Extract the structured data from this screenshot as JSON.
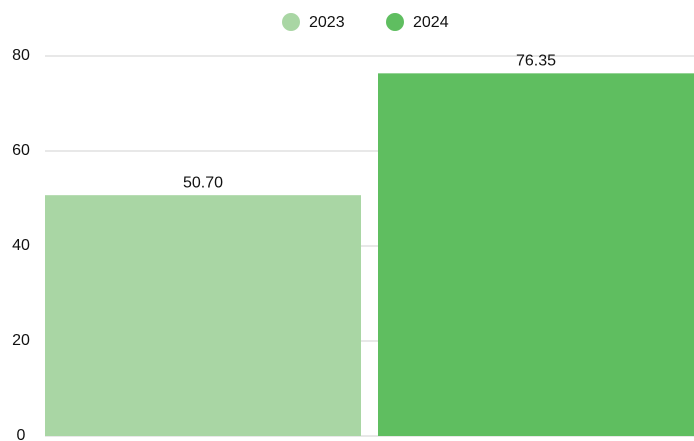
{
  "chart_data": {
    "type": "bar",
    "categories": [
      null
    ],
    "series": [
      {
        "name": "2023",
        "color": "#a9d6a4",
        "values": [
          50.7
        ],
        "value_labels": [
          "50.70"
        ]
      },
      {
        "name": "2024",
        "color": "#5fbe60",
        "values": [
          76.35
        ],
        "value_labels": [
          "76.35"
        ]
      }
    ],
    "ylim": [
      0,
      80
    ],
    "yticks": [
      0,
      20,
      40,
      60,
      80
    ],
    "grid": true,
    "legend": "top"
  }
}
